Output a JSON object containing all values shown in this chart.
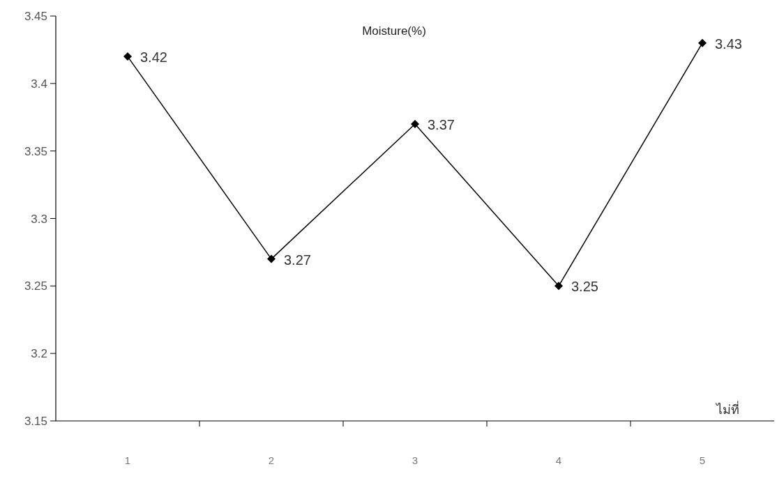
{
  "chart_data": {
    "type": "line",
    "title": "Moisture(%)",
    "xlabel": "ไม่ที่",
    "categories": [
      "1",
      "2",
      "3",
      "4",
      "5"
    ],
    "series": [
      {
        "color": "#000000",
        "values": [
          3.42,
          3.27,
          3.37,
          3.25,
          3.43
        ]
      }
    ],
    "ylim": [
      3.15,
      3.45
    ],
    "yticks": [
      3.15,
      3.2,
      3.25,
      3.3,
      3.35,
      3.4,
      3.45
    ],
    "data_labels": true,
    "marker": "diamond",
    "line_style": "solid",
    "grid": false
  }
}
